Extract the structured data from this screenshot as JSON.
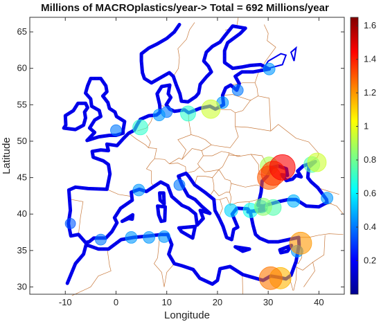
{
  "title": "Millions of MACROplastics/year->  Total = 692 Millions/year",
  "xlabel": "Longitude",
  "ylabel": "Latitude",
  "map": {
    "lon_range": [
      -17,
      45
    ],
    "lat_range": [
      29,
      67
    ],
    "x_ticks": [
      "-10",
      "0",
      "10",
      "20",
      "30",
      "40"
    ],
    "x_tick_values": [
      -10,
      0,
      10,
      20,
      30,
      40
    ],
    "y_ticks": [
      "30",
      "35",
      "40",
      "45",
      "50",
      "55",
      "60",
      "65"
    ],
    "y_tick_values": [
      30,
      35,
      40,
      45,
      50,
      55,
      60,
      65
    ],
    "coast_color": "#0000ee",
    "border_color": "#c8793c"
  },
  "colorbar": {
    "min": 0.0,
    "max": 1.65,
    "ticks": [
      "0.2",
      "0.4",
      "0.6",
      "0.8",
      "1",
      "1.2",
      "1.4",
      "1.6"
    ],
    "tick_values": [
      0.2,
      0.4,
      0.6,
      0.8,
      1.0,
      1.2,
      1.4,
      1.6
    ],
    "colormap": "jet"
  },
  "hotspots": [
    {
      "lon": 31.0,
      "lat": 45.6,
      "value": 1.35
    },
    {
      "lon": 32.8,
      "lat": 46.4,
      "value": 1.45
    },
    {
      "lon": 30.2,
      "lat": 45.0,
      "value": 1.3
    },
    {
      "lon": 30.5,
      "lat": 31.2,
      "value": 1.25
    },
    {
      "lon": 32.4,
      "lat": 31.2,
      "value": 1.15
    },
    {
      "lon": 36.4,
      "lat": 36.0,
      "value": 1.2
    },
    {
      "lon": 39.6,
      "lat": 47.1,
      "value": 0.95
    },
    {
      "lon": 38.6,
      "lat": 46.8,
      "value": 0.75
    },
    {
      "lon": 30.2,
      "lat": 46.6,
      "value": 0.9
    },
    {
      "lon": 18.7,
      "lat": 54.4,
      "value": 0.95
    },
    {
      "lon": 14.2,
      "lat": 53.8,
      "value": 0.7
    },
    {
      "lon": 4.8,
      "lat": 51.9,
      "value": 0.7
    },
    {
      "lon": 29.0,
      "lat": 41.0,
      "value": 0.85
    },
    {
      "lon": 31.0,
      "lat": 40.9,
      "value": 0.75
    },
    {
      "lon": 26.5,
      "lat": 40.5,
      "value": 0.65
    },
    {
      "lon": 22.7,
      "lat": 40.5,
      "value": 0.55
    },
    {
      "lon": 35.0,
      "lat": 41.8,
      "value": 0.5
    },
    {
      "lon": 41.6,
      "lat": 42.2,
      "value": 0.45
    },
    {
      "lon": 35.7,
      "lat": 34.9,
      "value": 0.45
    },
    {
      "lon": 10.0,
      "lat": 54.0,
      "value": 0.4
    },
    {
      "lon": 0.0,
      "lat": 51.5,
      "value": 0.4
    },
    {
      "lon": 30.2,
      "lat": 59.9,
      "value": 0.45
    },
    {
      "lon": 24.0,
      "lat": 57.0,
      "value": 0.4
    },
    {
      "lon": 21.0,
      "lat": 55.3,
      "value": 0.45
    },
    {
      "lon": 8.5,
      "lat": 53.6,
      "value": 0.45
    },
    {
      "lon": 12.5,
      "lat": 44.0,
      "value": 0.4
    },
    {
      "lon": 4.5,
      "lat": 43.3,
      "value": 0.45
    },
    {
      "lon": -3.0,
      "lat": 36.5,
      "value": 0.4
    },
    {
      "lon": 3.0,
      "lat": 36.8,
      "value": 0.45
    },
    {
      "lon": 6.5,
      "lat": 36.8,
      "value": 0.45
    },
    {
      "lon": 9.5,
      "lat": 36.9,
      "value": 0.45
    },
    {
      "lon": -9.0,
      "lat": 38.7,
      "value": 0.35
    },
    {
      "lon": 28.7,
      "lat": 41.0,
      "value": 0.5
    }
  ]
}
